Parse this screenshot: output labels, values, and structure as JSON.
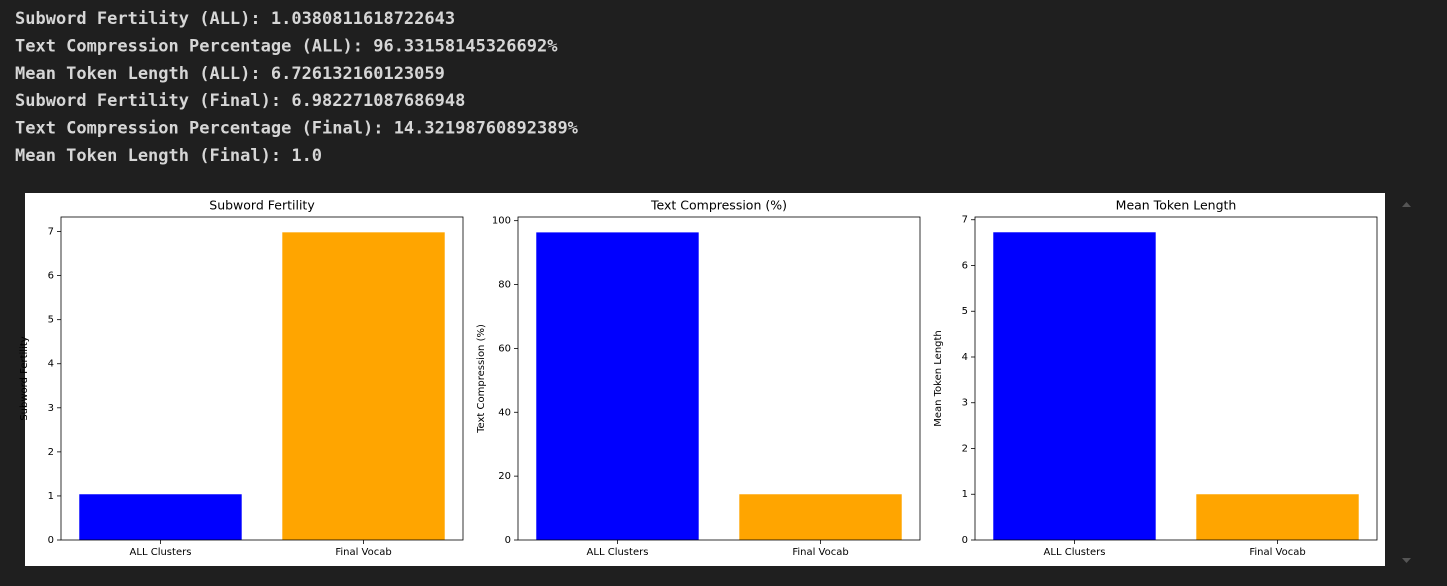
{
  "output": {
    "lines": [
      "Subword Fertility (ALL): 1.0380811618722643",
      "Text Compression Percentage (ALL): 96.33158145326692%",
      "Mean Token Length (ALL): 6.726132160123059",
      "Subword Fertility (Final): 6.982271087686948",
      "Text Compression Percentage (Final): 14.32198760892389%",
      "Mean Token Length (Final): 1.0"
    ]
  },
  "chart_data": [
    {
      "type": "bar",
      "title": "Subword Fertility",
      "ylabel": "Subword Fertility",
      "categories": [
        "ALL Clusters",
        "Final Vocab"
      ],
      "values": [
        1.0380811618722643,
        6.982271087686948
      ],
      "colors": [
        "blue",
        "orange"
      ],
      "ylim": [
        0,
        7.33
      ],
      "yticks": [
        0,
        1,
        2,
        3,
        4,
        5,
        6,
        7
      ]
    },
    {
      "type": "bar",
      "title": "Text Compression (%)",
      "ylabel": "Text Compression (%)",
      "categories": [
        "ALL Clusters",
        "Final Vocab"
      ],
      "values": [
        96.33158145326692,
        14.32198760892389
      ],
      "colors": [
        "blue",
        "orange"
      ],
      "ylim": [
        0,
        101.15
      ],
      "yticks": [
        0,
        20,
        40,
        60,
        80,
        100
      ]
    },
    {
      "type": "bar",
      "title": "Mean Token Length",
      "ylabel": "Mean Token Length",
      "categories": [
        "ALL Clusters",
        "Final Vocab"
      ],
      "values": [
        6.726132160123059,
        1.0
      ],
      "colors": [
        "blue",
        "orange"
      ],
      "ylim": [
        0,
        7.06
      ],
      "yticks": [
        0,
        1,
        2,
        3,
        4,
        5,
        6,
        7
      ]
    }
  ]
}
